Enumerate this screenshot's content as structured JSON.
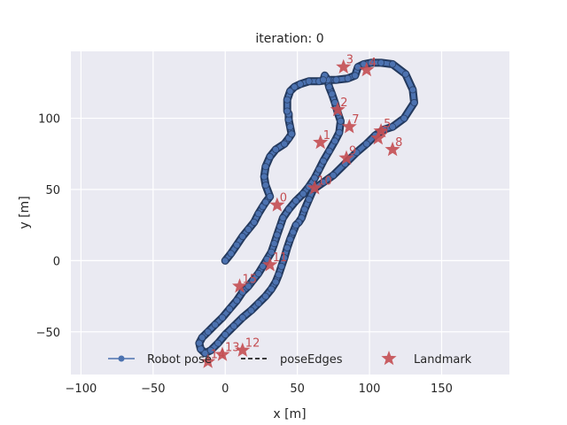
{
  "chart_data": {
    "type": "scatter",
    "title": "iteration: 0",
    "xlabel": "x [m]",
    "ylabel": "y [m]",
    "xlim": [
      -107,
      197
    ],
    "ylim": [
      -80,
      147
    ],
    "xticks": [
      -100,
      -50,
      0,
      50,
      100,
      150
    ],
    "yticks": [
      -50,
      0,
      50,
      100
    ],
    "grid": true,
    "legend_placement": "lower-center",
    "legend": [
      "Robot pose",
      "poseEdges",
      "Landmark"
    ],
    "colors": {
      "pose": "#4c72b0",
      "edge": "#000000",
      "landmark": "#c44e52",
      "plot_bg": "#eaeaf2",
      "grid": "#ffffff"
    },
    "series": [
      {
        "name": "Robot pose",
        "kind": "line-marker",
        "points": [
          [
            0,
            0
          ],
          [
            4,
            5
          ],
          [
            8,
            11
          ],
          [
            12,
            17
          ],
          [
            16,
            22
          ],
          [
            20,
            27
          ],
          [
            23,
            33
          ],
          [
            26,
            38
          ],
          [
            28,
            41
          ],
          [
            31,
            45
          ],
          [
            28,
            53
          ],
          [
            27,
            59
          ],
          [
            28,
            66
          ],
          [
            31,
            73
          ],
          [
            35,
            78
          ],
          [
            41,
            82
          ],
          [
            44,
            86
          ],
          [
            46,
            89
          ],
          [
            45,
            94
          ],
          [
            44,
            99
          ],
          [
            44,
            103
          ],
          [
            43,
            105
          ],
          [
            43,
            113
          ],
          [
            45,
            119
          ],
          [
            48,
            122
          ],
          [
            52,
            124
          ],
          [
            58,
            126
          ],
          [
            65,
            126
          ],
          [
            72,
            127
          ],
          [
            77,
            127
          ],
          [
            85,
            128
          ],
          [
            90,
            130
          ],
          [
            92,
            136
          ],
          [
            96,
            138
          ],
          [
            101,
            139
          ],
          [
            108,
            139
          ],
          [
            116,
            138
          ],
          [
            125,
            131
          ],
          [
            130,
            120
          ],
          [
            131,
            111
          ],
          [
            124,
            100
          ],
          [
            116,
            94
          ],
          [
            110,
            92
          ],
          [
            104,
            88
          ],
          [
            98,
            82
          ],
          [
            91,
            76
          ],
          [
            83,
            68
          ],
          [
            75,
            60
          ],
          [
            68,
            55
          ],
          [
            61,
            50
          ],
          [
            58,
            43
          ],
          [
            55,
            36
          ],
          [
            53,
            30
          ],
          [
            51,
            27
          ],
          [
            49,
            25
          ],
          [
            47,
            20
          ],
          [
            45,
            15
          ],
          [
            43,
            9
          ],
          [
            41,
            2
          ],
          [
            39,
            -4
          ],
          [
            37,
            -10
          ],
          [
            35,
            -15
          ],
          [
            32,
            -20
          ],
          [
            28,
            -25
          ],
          [
            23,
            -30
          ],
          [
            18,
            -35
          ],
          [
            12,
            -40
          ],
          [
            6,
            -46
          ],
          [
            0,
            -52
          ],
          [
            -5,
            -58
          ],
          [
            -10,
            -63
          ],
          [
            -14,
            -65
          ],
          [
            -17,
            -62
          ],
          [
            -18,
            -58
          ],
          [
            -16,
            -54
          ],
          [
            -12,
            -50
          ],
          [
            -7,
            -45
          ],
          [
            -2,
            -40
          ],
          [
            3,
            -34
          ],
          [
            8,
            -28
          ],
          [
            12,
            -22
          ],
          [
            16,
            -18
          ],
          [
            19,
            -14
          ],
          [
            23,
            -9
          ],
          [
            26,
            -4
          ],
          [
            29,
            1
          ],
          [
            32,
            6
          ],
          [
            34,
            12
          ],
          [
            36,
            18
          ],
          [
            38,
            24
          ],
          [
            40,
            30
          ],
          [
            44,
            36
          ],
          [
            49,
            42
          ],
          [
            54,
            47
          ],
          [
            58,
            52
          ],
          [
            62,
            58
          ],
          [
            65,
            64
          ],
          [
            68,
            70
          ],
          [
            72,
            77
          ],
          [
            76,
            84
          ],
          [
            79,
            90
          ],
          [
            80,
            98
          ],
          [
            78,
            104
          ],
          [
            76,
            111
          ],
          [
            74,
            117
          ],
          [
            72,
            122
          ],
          [
            71,
            127
          ],
          [
            69,
            130
          ],
          [
            68,
            127
          ]
        ]
      },
      {
        "name": "Landmark",
        "kind": "star",
        "points": [
          {
            "id": "0",
            "x": 36,
            "y": 39
          },
          {
            "id": "1",
            "x": 66,
            "y": 83
          },
          {
            "id": "2",
            "x": 78,
            "y": 106
          },
          {
            "id": "3",
            "x": 82,
            "y": 136
          },
          {
            "id": "4",
            "x": 98,
            "y": 134
          },
          {
            "id": "5",
            "x": 108,
            "y": 91
          },
          {
            "id": "6",
            "x": 106,
            "y": 86
          },
          {
            "id": "7",
            "x": 86,
            "y": 94
          },
          {
            "id": "8",
            "x": 116,
            "y": 78
          },
          {
            "id": "9",
            "x": 84,
            "y": 72
          },
          {
            "id": "10",
            "x": 62,
            "y": 51
          },
          {
            "id": "11",
            "x": 31,
            "y": -3
          },
          {
            "id": "12",
            "x": 12,
            "y": -63
          },
          {
            "id": "13",
            "x": -2,
            "y": -66
          },
          {
            "id": "14",
            "x": -12,
            "y": -71
          },
          {
            "id": "15",
            "x": 10,
            "y": -18
          }
        ]
      }
    ]
  }
}
